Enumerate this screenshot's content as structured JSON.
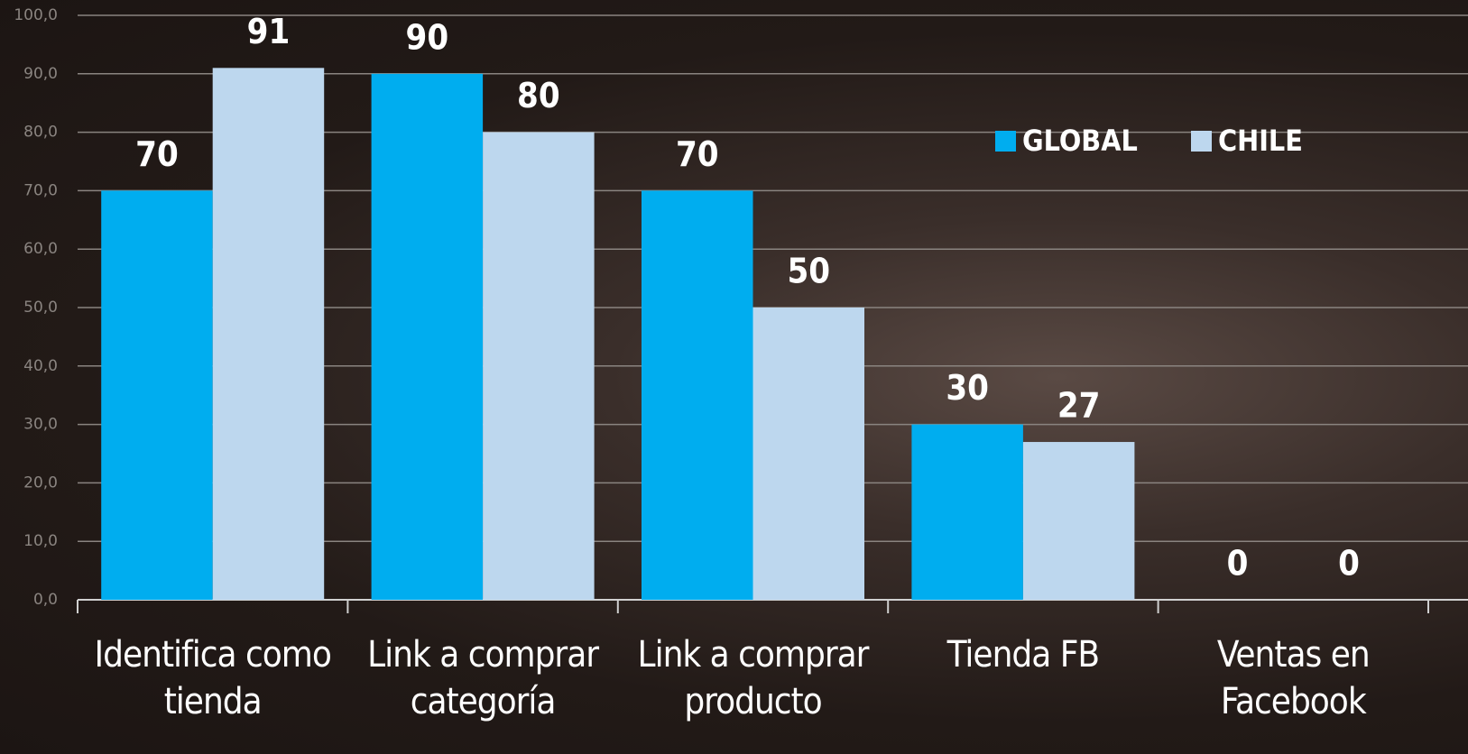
{
  "chart_data": {
    "type": "bar",
    "categories": [
      "Identifica como tienda",
      "Link a comprar categoría",
      "Link a comprar producto",
      "Tienda FB",
      "Ventas en Facebook"
    ],
    "series": [
      {
        "name": "GLOBAL",
        "color": "#00adef",
        "values": [
          70,
          90,
          70,
          30,
          0
        ]
      },
      {
        "name": "CHILE",
        "color": "#bdd7ee",
        "values": [
          91,
          80,
          50,
          27,
          0
        ]
      }
    ],
    "ylim": [
      0,
      100
    ],
    "yticks": [
      {
        "value": 0,
        "label": "0,0"
      },
      {
        "value": 10,
        "label": "10,0"
      },
      {
        "value": 20,
        "label": "20,0"
      },
      {
        "value": 30,
        "label": "30,0"
      },
      {
        "value": 40,
        "label": "40,0"
      },
      {
        "value": 50,
        "label": "50,0"
      },
      {
        "value": 60,
        "label": "60,0"
      },
      {
        "value": 70,
        "label": "70,0"
      },
      {
        "value": 80,
        "label": "80,0"
      },
      {
        "value": 90,
        "label": "90,0"
      },
      {
        "value": 100,
        "label": "100,0"
      }
    ],
    "grid": true,
    "legend": "upper right"
  }
}
